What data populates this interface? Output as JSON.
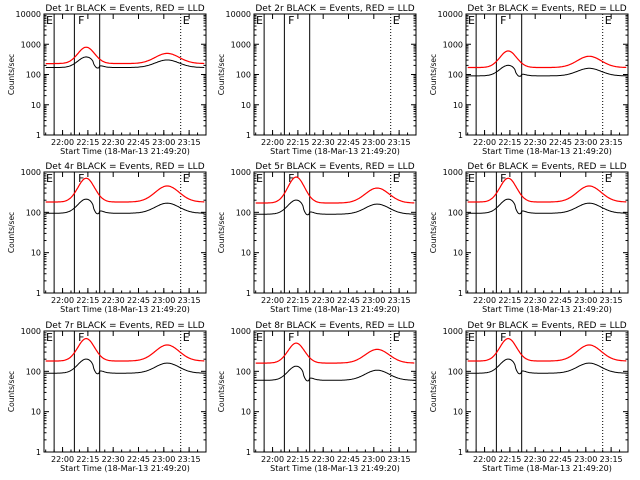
{
  "chart_data": {
    "type": "line",
    "ylog": true,
    "ylim": [
      1,
      10000
    ],
    "xlim": [
      "21:49:00",
      "23:25:00"
    ],
    "ylabel": "Counts/sec",
    "xlabel": "Start Time (18-Mar-13 21:49:20)",
    "xtick_labels": [
      "22:00",
      "22:15",
      "22:30",
      "22:45",
      "23:00",
      "23:15"
    ],
    "ytick_labels_top": [
      "1",
      "10",
      "100",
      "1000",
      "10000"
    ],
    "ytick_labels": [
      "1",
      "10",
      "100",
      "1000"
    ],
    "colors": {
      "events": "#000000",
      "lld": "#ff0000"
    },
    "markers": {
      "solid": [
        "21:55:00",
        "22:07:00",
        "22:22:00"
      ],
      "dotted": [
        "23:10:00"
      ],
      "letters": [
        {
          "t": "21:49:00",
          "text": "E"
        },
        {
          "t": "22:08:00",
          "text": "F"
        },
        {
          "t": "23:10:00",
          "text": "E"
        }
      ]
    },
    "panels": [
      {
        "title": "Det 1r  BLACK = Events, RED = LLD",
        "ytop": 10000,
        "events_base": 170,
        "lld_base": 230,
        "lld_peak1": 800,
        "lld_peak2": 500,
        "series": [
          {
            "name": "Events"
          },
          {
            "name": "LLD"
          }
        ]
      },
      {
        "title": "Det 2r  BLACK = Events, RED = LLD",
        "ytop": 10000,
        "events_base": null,
        "lld_base": null,
        "lld_peak1": null,
        "lld_peak2": null,
        "series": []
      },
      {
        "title": "Det 3r  BLACK = Events, RED = LLD",
        "ytop": 10000,
        "events_base": 90,
        "lld_base": 170,
        "lld_peak1": 600,
        "lld_peak2": 400,
        "series": [
          {
            "name": "Events"
          },
          {
            "name": "LLD"
          }
        ]
      },
      {
        "title": "Det 4r  BLACK = Events, RED = LLD",
        "ytop": 1000,
        "events_base": 95,
        "lld_base": 180,
        "lld_peak1": 700,
        "lld_peak2": 450,
        "series": [
          {
            "name": "Events"
          },
          {
            "name": "LLD"
          }
        ]
      },
      {
        "title": "Det 5r  BLACK = Events, RED = LLD",
        "ytop": 1000,
        "events_base": 90,
        "lld_base": 170,
        "lld_peak1": 750,
        "lld_peak2": 400,
        "series": [
          {
            "name": "Events"
          },
          {
            "name": "LLD"
          }
        ]
      },
      {
        "title": "Det 6r  BLACK = Events, RED = LLD",
        "ytop": 1000,
        "events_base": 95,
        "lld_base": 180,
        "lld_peak1": 700,
        "lld_peak2": 450,
        "series": [
          {
            "name": "Events"
          },
          {
            "name": "LLD"
          }
        ]
      },
      {
        "title": "Det 7r  BLACK = Events, RED = LLD",
        "ytop": 1000,
        "events_base": 90,
        "lld_base": 180,
        "lld_peak1": 650,
        "lld_peak2": 450,
        "series": [
          {
            "name": "Events"
          },
          {
            "name": "LLD"
          }
        ]
      },
      {
        "title": "Det 8r  BLACK = Events, RED = LLD",
        "ytop": 1000,
        "events_base": 60,
        "lld_base": 160,
        "lld_peak1": 500,
        "lld_peak2": 350,
        "series": [
          {
            "name": "Events"
          },
          {
            "name": "LLD"
          }
        ]
      },
      {
        "title": "Det 9r  BLACK = Events, RED = LLD",
        "ytop": 1000,
        "events_base": 90,
        "lld_base": 180,
        "lld_peak1": 650,
        "lld_peak2": 450,
        "series": [
          {
            "name": "Events"
          },
          {
            "name": "LLD"
          }
        ]
      }
    ]
  }
}
